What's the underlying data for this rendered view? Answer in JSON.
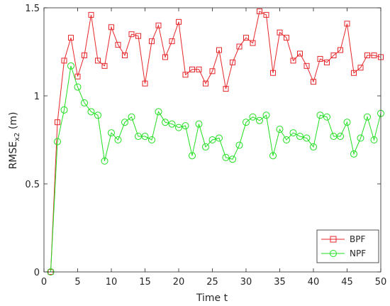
{
  "chart_data": {
    "type": "line",
    "xlabel": "Time t",
    "ylabel_main": "RMSE",
    "ylabel_sub": "x2",
    "ylabel_unit": " (m)",
    "xlim": [
      0,
      50
    ],
    "ylim": [
      0,
      1.5
    ],
    "xticks": [
      0,
      5,
      10,
      15,
      20,
      25,
      30,
      35,
      40,
      45,
      50
    ],
    "xtick_labels": [
      "0",
      "5",
      "10",
      "15",
      "20",
      "25",
      "30",
      "35",
      "40",
      "45",
      "50"
    ],
    "yticks": [
      0,
      0.5,
      1,
      1.5
    ],
    "ytick_labels": [
      "0",
      "0.5",
      "1",
      "1.5"
    ],
    "grid": false,
    "legend_position": "bottom-right",
    "x": [
      1,
      2,
      3,
      4,
      5,
      6,
      7,
      8,
      9,
      10,
      11,
      12,
      13,
      14,
      15,
      16,
      17,
      18,
      19,
      20,
      21,
      22,
      23,
      24,
      25,
      26,
      27,
      28,
      29,
      30,
      31,
      32,
      33,
      34,
      35,
      36,
      37,
      38,
      39,
      40,
      41,
      42,
      43,
      44,
      45,
      46,
      47,
      48,
      49,
      50
    ],
    "series": [
      {
        "name": "BPF",
        "color": "#e6262a",
        "marker": "square",
        "values": [
          0.0,
          0.85,
          1.2,
          1.33,
          1.11,
          1.23,
          1.46,
          1.2,
          1.17,
          1.39,
          1.29,
          1.23,
          1.35,
          1.34,
          1.07,
          1.31,
          1.4,
          1.22,
          1.31,
          1.42,
          1.12,
          1.15,
          1.15,
          1.07,
          1.14,
          1.26,
          1.04,
          1.19,
          1.28,
          1.33,
          1.3,
          1.48,
          1.46,
          1.13,
          1.36,
          1.33,
          1.2,
          1.24,
          1.17,
          1.08,
          1.21,
          1.19,
          1.23,
          1.26,
          1.41,
          1.13,
          1.16,
          1.23,
          1.23,
          1.22
        ]
      },
      {
        "name": "NPF",
        "color": "#1fdf1f",
        "marker": "circle",
        "values": [
          0.0,
          0.74,
          0.92,
          1.17,
          1.05,
          0.96,
          0.91,
          0.89,
          0.63,
          0.79,
          0.75,
          0.85,
          0.88,
          0.77,
          0.77,
          0.75,
          0.91,
          0.85,
          0.84,
          0.82,
          0.83,
          0.66,
          0.84,
          0.71,
          0.75,
          0.76,
          0.65,
          0.64,
          0.72,
          0.85,
          0.88,
          0.86,
          0.89,
          0.66,
          0.81,
          0.75,
          0.79,
          0.77,
          0.76,
          0.71,
          0.89,
          0.88,
          0.77,
          0.77,
          0.85,
          0.67,
          0.76,
          0.88,
          0.75,
          0.9
        ]
      }
    ]
  }
}
